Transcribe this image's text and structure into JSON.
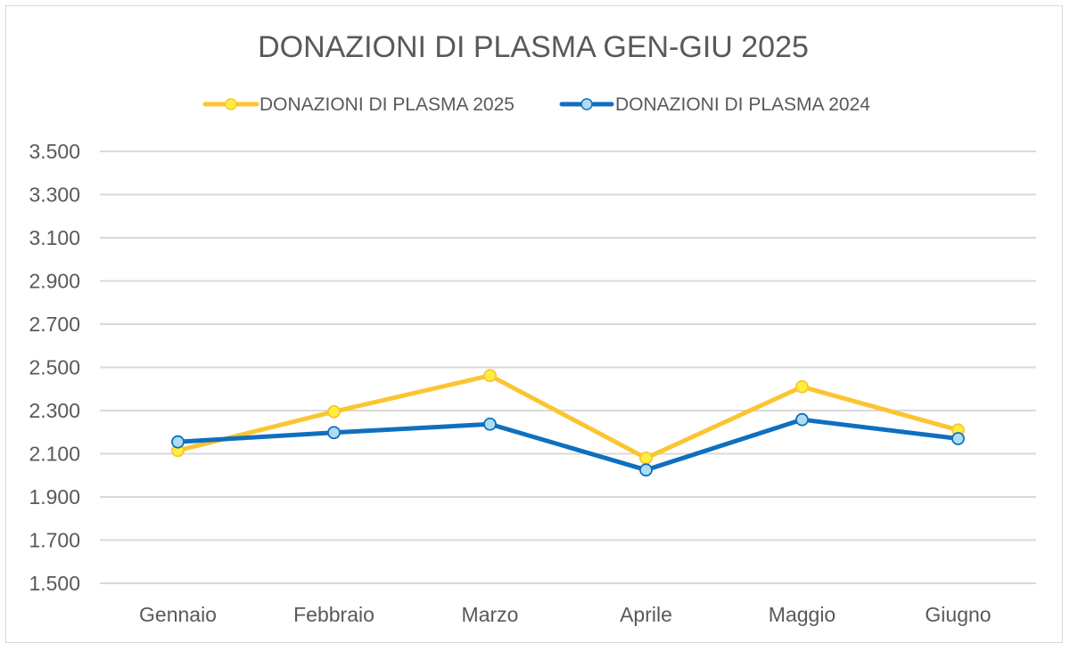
{
  "chart_data": {
    "type": "line",
    "title": "DONAZIONI DI PLASMA GEN-GIU 2025",
    "xlabel": "",
    "ylabel": "",
    "categories": [
      "Gennaio",
      "Febbraio",
      "Marzo",
      "Aprile",
      "Maggio",
      "Giugno"
    ],
    "ylim": [
      1500,
      3500
    ],
    "yticks": [
      1500,
      1700,
      1900,
      2100,
      2300,
      2500,
      2700,
      2900,
      3100,
      3300,
      3500
    ],
    "ytick_labels": [
      "1.500",
      "1.700",
      "1.900",
      "2.100",
      "2.300",
      "2.500",
      "2.700",
      "2.900",
      "3.100",
      "3.300",
      "3.500"
    ],
    "grid": true,
    "legend_position": "top",
    "series": [
      {
        "name": "DONAZIONI DI PLASMA 2025",
        "values": [
          2115,
          2295,
          2462,
          2080,
          2410,
          2210
        ],
        "line_color": "#fbc531",
        "marker_color": "#ffee3d"
      },
      {
        "name": "DONAZIONI DI PLASMA 2024",
        "values": [
          2155,
          2198,
          2237,
          2025,
          2258,
          2170
        ],
        "line_color": "#0f6fbf",
        "marker_color": "#aedcf2"
      }
    ]
  }
}
